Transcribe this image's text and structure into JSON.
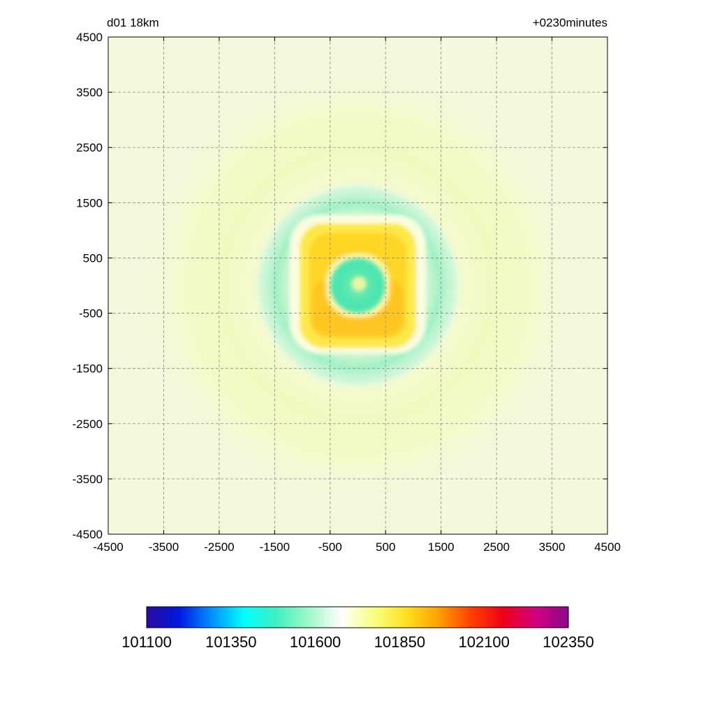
{
  "chart_data": {
    "type": "heatmap",
    "title_left": "d01 18km",
    "title_right": "+0230minutes",
    "xlabel": "",
    "ylabel": "",
    "xlim": [
      -4500,
      4500
    ],
    "ylim": [
      -4500,
      4500
    ],
    "x_ticks": [
      -4500,
      -3500,
      -2500,
      -1500,
      -500,
      500,
      1500,
      2500,
      3500,
      4500
    ],
    "y_ticks": [
      4500,
      3500,
      2500,
      1500,
      500,
      -500,
      -1500,
      -2500,
      -3500,
      -4500
    ],
    "x_tick_labels": [
      "-4500",
      "-3500",
      "-2500",
      "-1500",
      "-500",
      "500",
      "1500",
      "2500",
      "3500",
      "4500"
    ],
    "y_tick_labels": [
      "4500",
      "3500",
      "2500",
      "1500",
      "500",
      "-500",
      "-1500",
      "-2500",
      "-3500",
      "-4500"
    ],
    "grid": true,
    "background_value": 101800,
    "field_features": [
      {
        "shape": "disk",
        "center": [
          0,
          0
        ],
        "radius": 500,
        "value": 101650
      },
      {
        "shape": "square-ring",
        "center": [
          0,
          0
        ],
        "inner_half": 500,
        "outer_half": 1100,
        "value": 102000
      },
      {
        "shape": "ring",
        "center": [
          0,
          0
        ],
        "inner_radius": 1100,
        "outer_radius": 1900,
        "value": 101680
      },
      {
        "shape": "ring",
        "center": [
          0,
          0
        ],
        "inner_radius": 1900,
        "outer_radius": 3900,
        "value": 101790
      }
    ],
    "colorbar": {
      "min": 101100,
      "max": 102350,
      "ticks": [
        101100,
        101350,
        101600,
        101850,
        102100,
        102350
      ],
      "tick_labels": [
        "101100",
        "101350",
        "101600",
        "101850",
        "102100",
        "102350"
      ],
      "colors": [
        "#2a0aa0",
        "#0018e0",
        "#0090ff",
        "#00ffff",
        "#40f0c0",
        "#a0f8c8",
        "#ffffff",
        "#f8ff80",
        "#ffe020",
        "#ffa000",
        "#ff4000",
        "#f00018",
        "#d00080",
        "#8c0a8c"
      ]
    }
  }
}
